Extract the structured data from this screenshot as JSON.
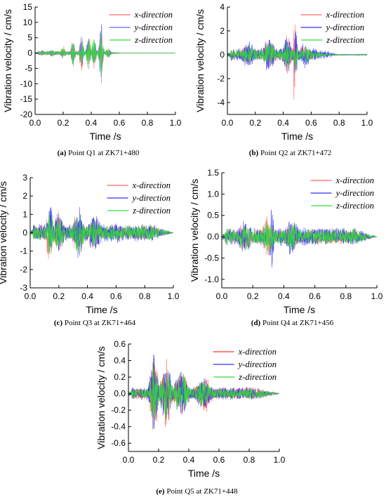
{
  "chart_data": [
    {
      "type": "line",
      "caption_label": "(a)",
      "caption_text": " Point Q1 at ZK71+480",
      "xlabel": "Time /s",
      "ylabel": "Vibration velocity / cm/s",
      "xlim": [
        0.0,
        1.0
      ],
      "ylim": [
        -20,
        15
      ],
      "xticks": [
        "0.0",
        "0.2",
        "0.4",
        "0.6",
        "0.8",
        "1.0"
      ],
      "yticks": [
        "15",
        "10",
        "5",
        "0",
        "-5",
        "-10",
        "-15",
        "-20"
      ],
      "legend_position": "top-right",
      "series": [
        {
          "name": "x-direction",
          "axis": "x",
          "color": "#ff6666",
          "noise": 0.8,
          "bursts": [
            [
              0.05,
              1.2,
              0.02
            ],
            [
              0.12,
              1.6,
              0.02
            ],
            [
              0.2,
              2.5,
              0.02
            ],
            [
              0.27,
              5.4,
              0.015
            ],
            [
              0.33,
              8.1,
              0.015
            ],
            [
              0.38,
              6.8,
              0.015
            ],
            [
              0.42,
              7.0,
              0.015
            ],
            [
              0.47,
              9.3,
              0.015
            ],
            [
              0.52,
              2.0,
              0.02
            ]
          ],
          "envelope_end": 0.62
        },
        {
          "name": "y-direction",
          "axis": "y",
          "color": "#6666ff",
          "noise": 0.7,
          "bursts": [
            [
              0.05,
              1.0,
              0.02
            ],
            [
              0.12,
              1.4,
              0.02
            ],
            [
              0.2,
              2.0,
              0.02
            ],
            [
              0.27,
              4.2,
              0.015
            ],
            [
              0.33,
              6.3,
              0.015
            ],
            [
              0.38,
              6.3,
              0.015
            ],
            [
              0.42,
              6.0,
              0.015
            ],
            [
              0.47,
              15.2,
              0.012
            ],
            [
              0.52,
              1.8,
              0.02
            ]
          ],
          "envelope_end": 0.62
        },
        {
          "name": "z-direction",
          "axis": "z",
          "color": "#33dd33",
          "noise": 0.7,
          "bursts": [
            [
              0.05,
              1.0,
              0.02
            ],
            [
              0.12,
              1.3,
              0.02
            ],
            [
              0.2,
              2.2,
              0.02
            ],
            [
              0.27,
              4.8,
              0.015
            ],
            [
              0.33,
              7.2,
              0.015
            ],
            [
              0.38,
              7.5,
              0.015
            ],
            [
              0.42,
              6.5,
              0.015
            ],
            [
              0.47,
              11.0,
              0.015
            ],
            [
              0.52,
              1.9,
              0.02
            ]
          ],
          "envelope_end": 0.62
        }
      ]
    },
    {
      "type": "line",
      "caption_label": "(b)",
      "caption_text": " Point Q2 at ZK71+472",
      "xlabel": "Time /s",
      "ylabel": "Vibration velocity / cm/s",
      "xlim": [
        0.0,
        1.0
      ],
      "ylim": [
        -5,
        4
      ],
      "xticks": [
        "0.0",
        "0.2",
        "0.4",
        "0.6",
        "0.8",
        "1.0"
      ],
      "yticks": [
        "4",
        "2",
        "0",
        "-2",
        "-4"
      ],
      "legend_position": "top-right",
      "series": [
        {
          "name": "x-direction",
          "axis": "x",
          "color": "#ff6666",
          "noise": 0.5,
          "bursts": [
            [
              0.15,
              1.1,
              0.05
            ],
            [
              0.3,
              1.5,
              0.05
            ],
            [
              0.43,
              2.0,
              0.03
            ],
            [
              0.48,
              4.6,
              0.01
            ],
            [
              0.55,
              1.0,
              0.04
            ]
          ],
          "envelope_end": 0.75
        },
        {
          "name": "y-direction",
          "axis": "y",
          "color": "#3333ff",
          "noise": 0.6,
          "bursts": [
            [
              0.15,
              1.3,
              0.05
            ],
            [
              0.3,
              1.6,
              0.05
            ],
            [
              0.43,
              2.0,
              0.03
            ],
            [
              0.49,
              2.7,
              0.012
            ],
            [
              0.56,
              1.3,
              0.04
            ]
          ],
          "envelope_end": 0.8
        },
        {
          "name": "z-direction",
          "axis": "z",
          "color": "#33dd33",
          "noise": 0.5,
          "bursts": [
            [
              0.15,
              1.0,
              0.05
            ],
            [
              0.3,
              1.3,
              0.05
            ],
            [
              0.43,
              1.5,
              0.03
            ],
            [
              0.49,
              1.8,
              0.012
            ],
            [
              0.56,
              0.9,
              0.04
            ]
          ],
          "envelope_end": 0.75
        }
      ]
    },
    {
      "type": "line",
      "caption_label": "(c)",
      "caption_text": " Point Q3 at ZK71+464",
      "xlabel": "Time /s",
      "ylabel": "Vibration velocity / cm/s",
      "xlim": [
        0.0,
        1.0
      ],
      "ylim": [
        -3,
        3
      ],
      "xticks": [
        "0.0",
        "0.2",
        "0.4",
        "0.6",
        "0.8",
        "1.0"
      ],
      "yticks": [
        "3",
        "2",
        "1",
        "0",
        "-1",
        "-2",
        "-3"
      ],
      "legend_position": "top-right",
      "series": [
        {
          "name": "x-direction",
          "axis": "x",
          "color": "#ff6666",
          "noise": 0.45,
          "bursts": [
            [
              0.13,
              2.1,
              0.02
            ],
            [
              0.2,
              1.3,
              0.04
            ],
            [
              0.33,
              1.2,
              0.05
            ],
            [
              0.45,
              1.1,
              0.05
            ],
            [
              0.6,
              0.5,
              0.08
            ]
          ],
          "envelope_end": 1.0
        },
        {
          "name": "y-direction",
          "axis": "y",
          "color": "#3333ff",
          "noise": 0.5,
          "bursts": [
            [
              0.14,
              2.1,
              0.02
            ],
            [
              0.2,
              1.4,
              0.04
            ],
            [
              0.34,
              1.9,
              0.03
            ],
            [
              0.45,
              1.3,
              0.05
            ],
            [
              0.6,
              0.6,
              0.08
            ]
          ],
          "envelope_end": 1.0
        },
        {
          "name": "z-direction",
          "axis": "z",
          "color": "#33dd33",
          "noise": 0.45,
          "bursts": [
            [
              0.14,
              1.5,
              0.03
            ],
            [
              0.2,
              1.1,
              0.04
            ],
            [
              0.34,
              1.2,
              0.05
            ],
            [
              0.45,
              1.0,
              0.05
            ],
            [
              0.6,
              0.5,
              0.08
            ]
          ],
          "envelope_end": 1.0
        }
      ]
    },
    {
      "type": "line",
      "caption_label": "(d)",
      "caption_text": " Point Q4 at ZK71+456",
      "xlabel": "Time /s",
      "ylabel": "Vibration velocity / cm/s",
      "xlim": [
        0.0,
        1.0
      ],
      "ylim": [
        -1.2,
        1.5
      ],
      "xticks": [
        "0.0",
        "0.2",
        "0.4",
        "0.6",
        "0.8",
        "1.0"
      ],
      "yticks": [
        "1.5",
        "1.0",
        "0.5",
        "0.0",
        "-0.5",
        "-1.0"
      ],
      "legend_position": "top-right",
      "series": [
        {
          "name": "x-direction",
          "axis": "x",
          "color": "#ff6666",
          "noise": 0.2,
          "bursts": [
            [
              0.15,
              0.4,
              0.05
            ],
            [
              0.3,
              0.6,
              0.04
            ],
            [
              0.45,
              0.4,
              0.05
            ]
          ],
          "envelope_end": 1.0
        },
        {
          "name": "y-direction",
          "axis": "y",
          "color": "#3333ff",
          "noise": 0.22,
          "bursts": [
            [
              0.15,
              0.5,
              0.05
            ],
            [
              0.32,
              0.95,
              0.015
            ],
            [
              0.45,
              0.5,
              0.05
            ]
          ],
          "envelope_end": 1.0
        },
        {
          "name": "z-direction",
          "axis": "z",
          "color": "#33dd33",
          "noise": 0.2,
          "bursts": [
            [
              0.15,
              0.4,
              0.05
            ],
            [
              0.3,
              0.5,
              0.04
            ],
            [
              0.45,
              0.4,
              0.05
            ]
          ],
          "envelope_end": 1.0
        }
      ]
    },
    {
      "type": "line",
      "caption_label": "(e)",
      "caption_text": " Point Q5 at ZK71+448",
      "xlabel": "Time /s",
      "ylabel": "Vibration velocity / cm/s",
      "xlim": [
        0.0,
        1.0
      ],
      "ylim": [
        -0.7,
        0.6
      ],
      "xticks": [
        "0.0",
        "0.2",
        "0.4",
        "0.6",
        "0.8",
        "1.0"
      ],
      "yticks": [
        "0.6",
        "0.4",
        "0.2",
        "0.0",
        "-0.2",
        "-0.4",
        "-0.6"
      ],
      "legend_position": "top-right",
      "series": [
        {
          "name": "x-direction",
          "axis": "x",
          "color": "#ff3333",
          "noise": 0.08,
          "bursts": [
            [
              0.17,
              0.55,
              0.03
            ],
            [
              0.25,
              0.45,
              0.04
            ],
            [
              0.35,
              0.35,
              0.05
            ],
            [
              0.5,
              0.25,
              0.06
            ]
          ],
          "envelope_end": 1.0
        },
        {
          "name": "y-direction",
          "axis": "y",
          "color": "#3333ff",
          "noise": 0.08,
          "bursts": [
            [
              0.17,
              0.5,
              0.03
            ],
            [
              0.25,
              0.4,
              0.04
            ],
            [
              0.35,
              0.3,
              0.05
            ],
            [
              0.5,
              0.2,
              0.06
            ]
          ],
          "envelope_end": 1.0
        },
        {
          "name": "z-direction",
          "axis": "z",
          "color": "#33dd33",
          "noise": 0.07,
          "bursts": [
            [
              0.17,
              0.45,
              0.03
            ],
            [
              0.25,
              0.35,
              0.04
            ],
            [
              0.35,
              0.3,
              0.05
            ],
            [
              0.5,
              0.2,
              0.06
            ]
          ],
          "envelope_end": 1.0
        }
      ]
    }
  ]
}
